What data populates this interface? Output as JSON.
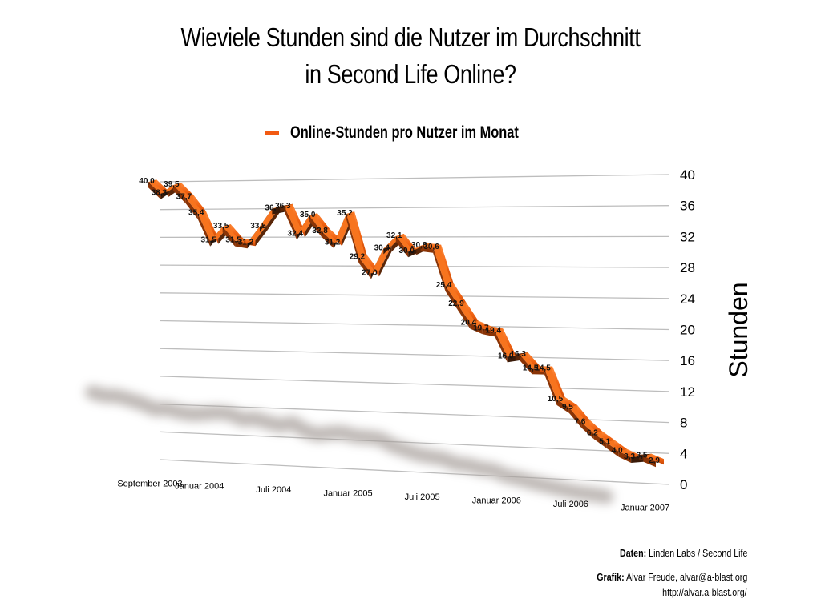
{
  "header": {
    "title_line1": "Wieviele Stunden sind die Nutzer im Durchschnitt",
    "title_line2": "in Second Life Online?"
  },
  "legend": {
    "label": "Online-Stunden pro Nutzer im Monat",
    "color": "#f25a12"
  },
  "footer": {
    "data_label": "Daten:",
    "data_value": "Linden Labs / Second Life",
    "graphic_label": "Grafik:",
    "graphic_value": "Alvar Freude, alvar@a-blast.org",
    "url": "http://alvar.a-blast.org/"
  },
  "chart_data": {
    "type": "line",
    "style": "3d-ribbon",
    "title": "Wieviele Stunden sind die Nutzer im Durchschnitt in Second Life Online?",
    "xlabel": "",
    "ylabel": "Stunden",
    "ylim": [
      0,
      40
    ],
    "yticks": [
      0,
      4,
      8,
      12,
      16,
      20,
      24,
      28,
      32,
      36,
      40
    ],
    "grid": true,
    "legend_position": "top",
    "x_tick_labels": [
      {
        "index": 0,
        "label": "September 2003"
      },
      {
        "index": 4,
        "label": "Januar 2004"
      },
      {
        "index": 10,
        "label": "Juli 2004"
      },
      {
        "index": 16,
        "label": "Januar 2005"
      },
      {
        "index": 22,
        "label": "Juli 2005"
      },
      {
        "index": 28,
        "label": "Januar 2006"
      },
      {
        "index": 34,
        "label": "Juli 2006"
      },
      {
        "index": 40,
        "label": "Januar 2007"
      }
    ],
    "series": [
      {
        "name": "Online-Stunden pro Nutzer im Monat",
        "color": "#f25a12",
        "values": [
          40.0,
          38.3,
          39.5,
          37.7,
          35.4,
          31.5,
          33.5,
          31.5,
          31.2,
          33.5,
          36.0,
          36.3,
          32.4,
          35.0,
          32.8,
          31.2,
          35.2,
          29.2,
          27.0,
          30.4,
          32.1,
          30.0,
          30.8,
          30.6,
          25.4,
          22.9,
          20.4,
          19.7,
          19.4,
          16.0,
          16.3,
          14.5,
          14.5,
          10.5,
          9.5,
          7.6,
          6.2,
          5.1,
          4.0,
          3.3,
          3.5,
          2.9
        ],
        "labels": [
          "40,0",
          "38,3",
          "39,5",
          "37,7",
          "35,4",
          "31,5",
          "33,5",
          "31,5",
          "31,2",
          "33,5",
          "36,",
          "36,3",
          "32,4",
          "35,0",
          "32,8",
          "31,2",
          "35,2",
          "29,2",
          "27,0",
          "30,4",
          "32,1",
          "30,0",
          "30,8",
          "30,6",
          "25,4",
          "22,9",
          "20,4",
          "19,7",
          "19,4",
          "16,0",
          "16,3",
          "14,5",
          "14,5",
          "10,5",
          "9,5",
          "7,6",
          "6,2",
          "5,1",
          "4,0",
          "3,3",
          "3,5",
          "2,9"
        ]
      }
    ]
  }
}
